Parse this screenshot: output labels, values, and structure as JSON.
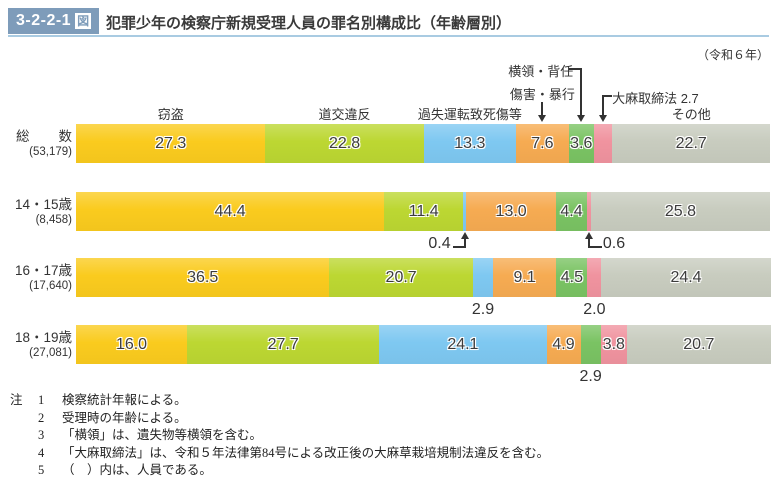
{
  "header": {
    "figure_no": "3-2-2-1",
    "figure_no_suffix": "図",
    "title": "犯罪少年の検察庁新規受理人員の罪名別構成比（年齢層別）",
    "year_note": "（令和６年）"
  },
  "chart_data": {
    "type": "bar",
    "orientation": "horizontal-stacked-100percent",
    "unit": "%",
    "title": "犯罪少年の検察庁新規受理人員の罪名別構成比（年齢層別）",
    "xlim": [
      0,
      100
    ],
    "grid": false,
    "legend_position": "labels-above-first-bar",
    "series": [
      {
        "name": "窃盗",
        "key": "theft",
        "color": "#FACB1E"
      },
      {
        "name": "道交違反",
        "key": "road-traffic",
        "color": "#BCD732"
      },
      {
        "name": "過失運転致死傷等",
        "key": "negligent-driving",
        "color": "#7EC8F1"
      },
      {
        "name": "傷害・暴行",
        "key": "assault",
        "color": "#F6AB52"
      },
      {
        "name": "横領・背任",
        "key": "embezzlement",
        "color": "#7AC363"
      },
      {
        "name": "大麻取締法",
        "key": "cannabis",
        "color": "#F0939F"
      },
      {
        "name": "その他",
        "key": "other",
        "color": "#C8CCBF"
      }
    ],
    "categories": [
      "総数",
      "14・15歳",
      "16・17歳",
      "18・19歳"
    ],
    "rows": [
      {
        "label": "総数",
        "spread": true,
        "count": "(53,179)",
        "values": [
          27.3,
          22.8,
          13.3,
          7.6,
          3.6,
          2.7,
          22.7
        ],
        "label_modes": [
          "in",
          "in",
          "in",
          "in",
          "in",
          "none",
          "in"
        ]
      },
      {
        "label": "14・15歳",
        "spread": false,
        "count": "(8,458)",
        "values": [
          44.4,
          11.4,
          0.4,
          13.0,
          4.4,
          0.6,
          25.8
        ],
        "label_modes": [
          "in",
          "in",
          "arrowL",
          "in",
          "in",
          "arrowR",
          "in"
        ]
      },
      {
        "label": "16・17歳",
        "spread": false,
        "count": "(17,640)",
        "values": [
          36.5,
          20.7,
          2.9,
          9.1,
          4.5,
          2.0,
          24.4
        ],
        "label_modes": [
          "in",
          "in",
          "below",
          "in",
          "in",
          "below",
          "in"
        ]
      },
      {
        "label": "18・19歳",
        "spread": false,
        "count": "(27,081)",
        "values": [
          16.0,
          27.7,
          24.1,
          4.9,
          2.9,
          3.8,
          20.7
        ],
        "label_modes": [
          "in",
          "in",
          "in",
          "in",
          "below",
          "in",
          "in"
        ]
      }
    ],
    "top_labels": [
      {
        "text": "窃盗",
        "series": 0
      },
      {
        "text": "道交違反",
        "series": 1
      },
      {
        "text": "過失運転致死傷等",
        "series": 2
      },
      {
        "text": "その他",
        "series": 6
      }
    ],
    "arrow_labels": [
      {
        "text": "傷害・暴行",
        "series": 3,
        "style": "straight"
      },
      {
        "text": "横領・背任",
        "series": 4,
        "style": "elbow-left"
      },
      {
        "text": "大麻取締法 2.7",
        "series": 5,
        "style": "elbow-right"
      }
    ]
  },
  "notes": {
    "prefix": "注",
    "items": [
      {
        "no": "1",
        "text": "検察統計年報による。"
      },
      {
        "no": "2",
        "text": "受理時の年齢による。"
      },
      {
        "no": "3",
        "text": "「横領」は、遺失物等横領を含む。"
      },
      {
        "no": "4",
        "text": "「大麻取締法」は、令和５年法律第84号による改正後の大麻草栽培規制法違反を含む。"
      },
      {
        "no": "5",
        "text": "（　）内は、人員である。"
      }
    ]
  }
}
